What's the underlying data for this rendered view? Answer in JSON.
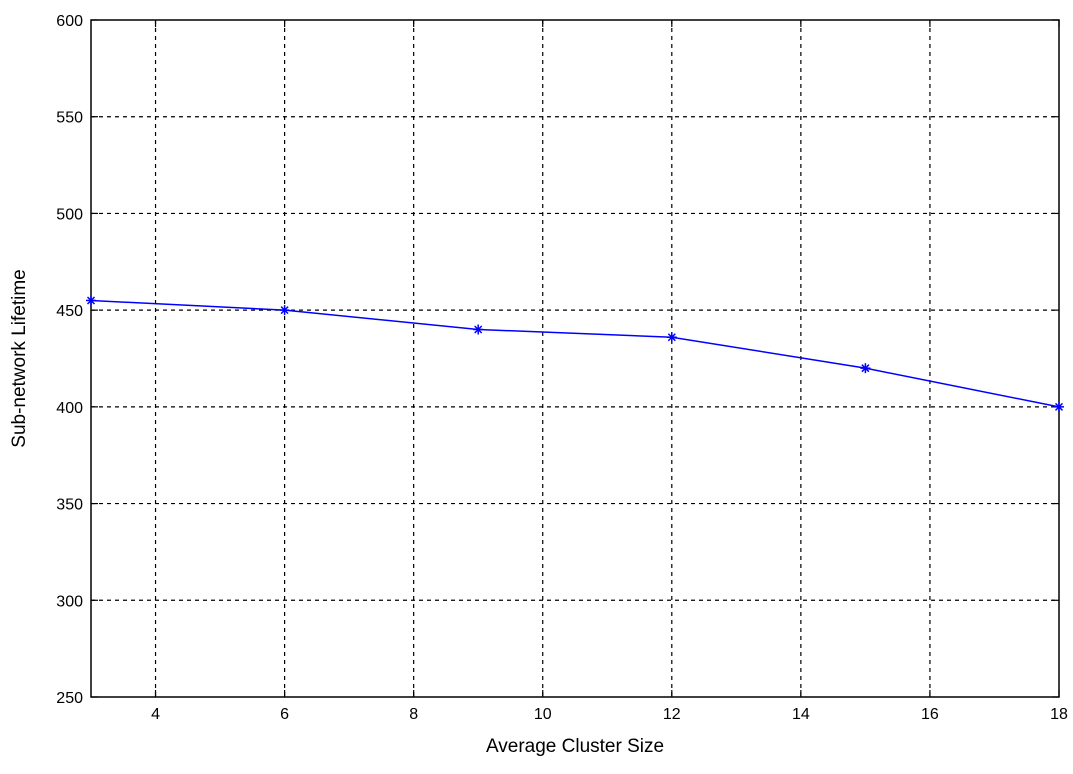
{
  "chart_data": {
    "type": "line",
    "title": "",
    "xlabel": "Average Cluster Size",
    "ylabel": "Sub-network Lifetime",
    "xlim": [
      3,
      18
    ],
    "ylim": [
      250,
      600
    ],
    "xticks": [
      4,
      6,
      8,
      10,
      12,
      14,
      16,
      18
    ],
    "yticks": [
      250,
      300,
      350,
      400,
      450,
      500,
      550,
      600
    ],
    "xtick_labels": [
      "4",
      "6",
      "8",
      "10",
      "12",
      "14",
      "16",
      "18"
    ],
    "ytick_labels": [
      "250",
      "300",
      "350",
      "400",
      "450",
      "500",
      "550",
      "600"
    ],
    "grid": true,
    "series": [
      {
        "color": "#0000ff",
        "marker": "star",
        "x": [
          3,
          6,
          9,
          12,
          15,
          18
        ],
        "y": [
          455,
          450,
          440,
          436,
          420,
          400
        ]
      }
    ]
  }
}
